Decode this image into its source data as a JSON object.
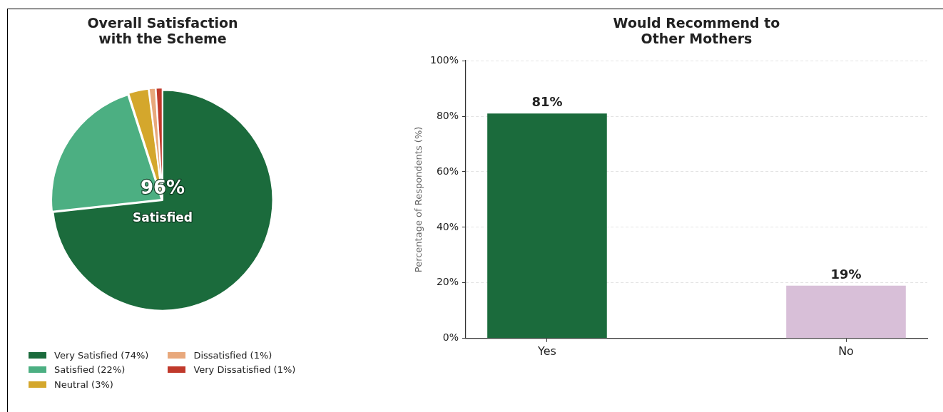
{
  "chart_data": [
    {
      "type": "pie",
      "title": "Overall Satisfaction\nwith the Scheme",
      "categories": [
        "Very Satisfied (74%)",
        "Satisfied (22%)",
        "Neutral (3%)",
        "Dissatisfied (1%)",
        "Very Dissatisfied (1%)"
      ],
      "values": [
        74,
        22,
        3,
        1,
        1
      ],
      "colors": [
        "#1b6b3c",
        "#4caf82",
        "#d4a72c",
        "#e8a87c",
        "#c0392b"
      ],
      "legend": "bottom",
      "annotations": [
        "96%",
        "Satisfied"
      ]
    },
    {
      "type": "bar",
      "title": "Would Recommend to\nOther Mothers",
      "categories": [
        "Yes",
        "No"
      ],
      "values": [
        81,
        19
      ],
      "colors": [
        "#1b6b3c",
        "#d8bfd8"
      ],
      "ylabel": "Percentage of Respondents (%)",
      "ylim": [
        0,
        100
      ],
      "yticks": [
        {
          "value": 0,
          "label": "0%"
        },
        {
          "value": 20,
          "label": "20%"
        },
        {
          "value": 40,
          "label": "40%"
        },
        {
          "value": 60,
          "label": "60%"
        },
        {
          "value": 80,
          "label": "80%"
        },
        {
          "value": 100,
          "label": "100%"
        }
      ],
      "grid": "y",
      "value_labels": [
        "81%",
        "19%"
      ]
    }
  ]
}
